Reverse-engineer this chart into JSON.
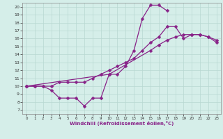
{
  "xlabel": "Windchill (Refroidissement éolien,°C)",
  "xlim": [
    -0.5,
    23.5
  ],
  "ylim": [
    6.5,
    20.5
  ],
  "xticks": [
    0,
    1,
    2,
    3,
    4,
    5,
    6,
    7,
    8,
    9,
    10,
    11,
    12,
    13,
    14,
    15,
    16,
    17,
    18,
    19,
    20,
    21,
    22,
    23
  ],
  "yticks": [
    7,
    8,
    9,
    10,
    11,
    12,
    13,
    14,
    15,
    16,
    17,
    18,
    19,
    20
  ],
  "bg_color": "#d5eee9",
  "grid_color": "#b8d8d2",
  "line_color": "#882288",
  "markersize": 2.5,
  "linewidth": 0.9,
  "curve1_x": [
    0,
    1,
    2,
    3,
    4,
    5,
    6,
    7,
    8,
    9,
    10,
    11,
    12,
    13,
    14,
    15,
    16,
    17
  ],
  "curve1_y": [
    10,
    10,
    10,
    9.5,
    8.5,
    8.5,
    8.5,
    7.5,
    8.5,
    8.5,
    11.5,
    11.5,
    12.5,
    14.5,
    18.5,
    20.2,
    20.2,
    19.5
  ],
  "curve2_x": [
    0,
    1,
    2,
    3,
    4,
    5,
    6,
    7,
    8,
    9,
    10,
    11,
    12,
    13,
    14,
    15,
    16,
    17,
    18,
    19,
    20,
    21,
    22,
    23
  ],
  "curve2_y": [
    10,
    10,
    10,
    10,
    10.5,
    10.5,
    10.5,
    10.5,
    11.0,
    11.5,
    12.0,
    12.5,
    13.0,
    13.5,
    14.5,
    15.5,
    16.2,
    17.5,
    17.5,
    16.0,
    16.5,
    16.5,
    16.2,
    15.8
  ],
  "curve3_x": [
    0,
    10,
    15,
    16,
    17,
    18,
    19,
    20,
    21,
    22,
    23
  ],
  "curve3_y": [
    10,
    11.5,
    14.5,
    15.2,
    15.8,
    16.2,
    16.5,
    16.5,
    16.5,
    16.2,
    15.5
  ]
}
